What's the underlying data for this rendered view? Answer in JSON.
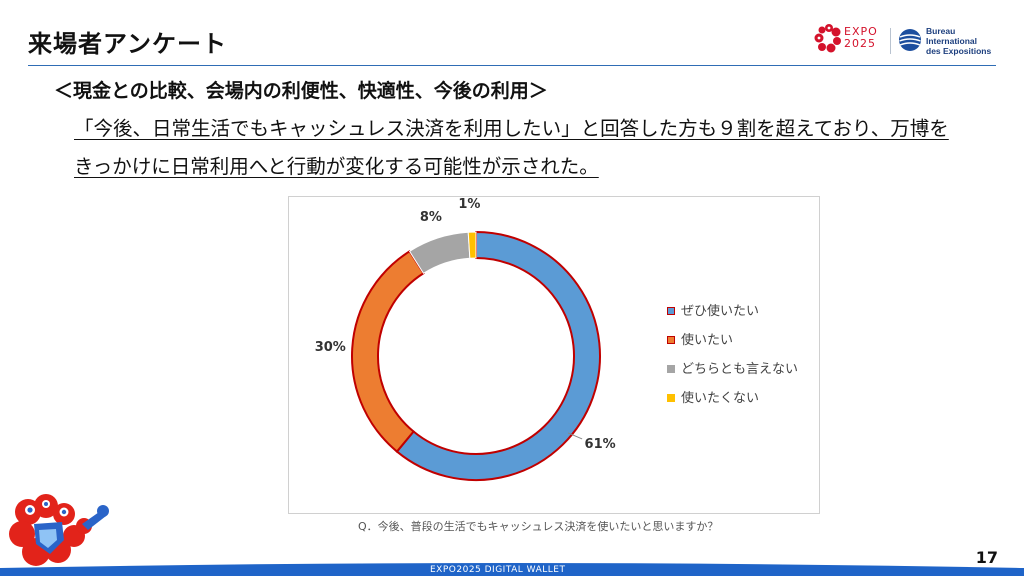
{
  "page": {
    "title": "来場者アンケート",
    "subtitle": "＜現金との比較、会場内の利便性、快適性、今後の利用＞",
    "summary_line1": "「今後、日常生活でもキャッシュレス決済を利用したい」と回答した方も９割を超えており、万博を",
    "summary_line2": "きっかけに日常利用へと行動が変化する可能性が示された。",
    "question": "Q．今後、普段の生活でもキャッシュレス決済を使いたいと思いますか？",
    "page_number": "17",
    "footer": "EXPO2025 DIGITAL WALLET"
  },
  "logos": {
    "expo_line1": "EXPO",
    "expo_line2": "2025",
    "bie_line1": "Bureau",
    "bie_line2": "International",
    "bie_line3": "des Expositions"
  },
  "colors": {
    "accent_blue": "#2f6db5",
    "footer_blue": "#1f64c8",
    "expo_red": "#d4122b"
  },
  "chart_data": {
    "type": "pie",
    "style": "donut",
    "title": "",
    "categories": [
      "ぜひ使いたい",
      "使いたい",
      "どちらとも言えない",
      "使いたくない"
    ],
    "values": [
      61,
      30,
      8,
      1
    ],
    "labels": [
      "61%",
      "30%",
      "8%",
      "1%"
    ],
    "colors": [
      "#5b9bd5",
      "#ed7d31",
      "#a5a5a5",
      "#ffc000"
    ],
    "outline_color": "#c00000",
    "legend_position": "right"
  }
}
